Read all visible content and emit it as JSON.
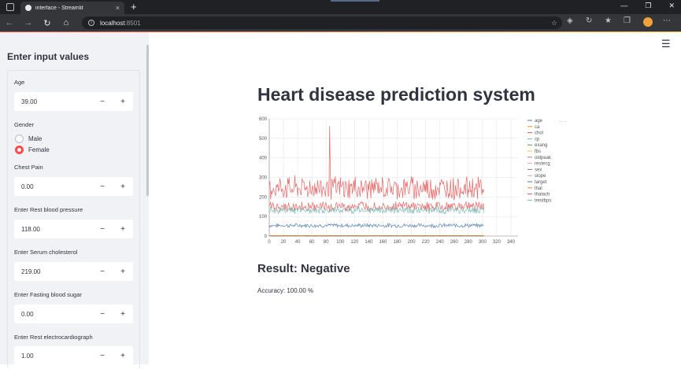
{
  "browser": {
    "tab_title": "interface - Streamlit",
    "tab_close": "×",
    "new_tab": "+",
    "url_host": "localhost",
    "url_port": ":8501",
    "nav_back": "←",
    "nav_forward": "→",
    "nav_reload": "↻",
    "nav_home": "⌂",
    "win_min": "—",
    "win_restore": "❐",
    "win_close": "✕"
  },
  "sidebar": {
    "title": "Enter input values",
    "age": {
      "label": "Age",
      "value": "39.00"
    },
    "gender": {
      "label": "Gender",
      "options": [
        "Male",
        "Female"
      ],
      "selected": "Female"
    },
    "chest_pain": {
      "label": "Chest Pain",
      "value": "0.00"
    },
    "rest_bp": {
      "label": "Enter Rest blood pressure",
      "value": "118.00"
    },
    "cholesterol": {
      "label": "Enter Serum cholesterol",
      "value": "219.00"
    },
    "fbs": {
      "label": "Enter Fasting blood sugar",
      "value": "0.00"
    },
    "restecg": {
      "label": "Enter Rest electrocardiograph",
      "value": "1.00"
    },
    "minus": "−",
    "plus": "+"
  },
  "main": {
    "menu_icon": "☰",
    "title": "Heart disease prediction system",
    "chart_menu": "···",
    "result": "Result: Negative",
    "accuracy": "Accuracy: 100.00 %"
  },
  "chart_data": {
    "type": "line",
    "x_ticks": [
      0,
      20,
      40,
      60,
      80,
      100,
      120,
      140,
      160,
      180,
      200,
      220,
      240,
      260,
      280,
      300,
      320,
      340
    ],
    "y_ticks": [
      0,
      100,
      200,
      300,
      400,
      500,
      600
    ],
    "xlim": [
      0,
      350
    ],
    "ylim": [
      0,
      600
    ],
    "n_points": 303,
    "grid": true,
    "legend_placement": "right",
    "series": [
      {
        "name": "age",
        "color": "#4c78a8",
        "mean": 54,
        "spread": 9
      },
      {
        "name": "ca",
        "color": "#f58518",
        "mean": 0.7,
        "spread": 1
      },
      {
        "name": "chol",
        "color": "#e45756",
        "mean": 246,
        "spread": 52,
        "peak": {
          "x": 85,
          "y": 564
        }
      },
      {
        "name": "cp",
        "color": "#72b7b2",
        "mean": 1,
        "spread": 1
      },
      {
        "name": "exang",
        "color": "#54a24b",
        "mean": 0.3,
        "spread": 0.5
      },
      {
        "name": "fbs",
        "color": "#eeca3b",
        "mean": 0.15,
        "spread": 0.4
      },
      {
        "name": "oldpeak",
        "color": "#b279a2",
        "mean": 1,
        "spread": 1.2
      },
      {
        "name": "restecg",
        "color": "#ff9da6",
        "mean": 0.5,
        "spread": 0.5
      },
      {
        "name": "sex",
        "color": "#9d755d",
        "mean": 0.7,
        "spread": 0.5
      },
      {
        "name": "slope",
        "color": "#bab0ac",
        "mean": 1.4,
        "spread": 0.6
      },
      {
        "name": "target",
        "color": "#4c78a8",
        "mean": 0.5,
        "spread": 0.5
      },
      {
        "name": "thal",
        "color": "#f58518",
        "mean": 2.3,
        "spread": 0.6
      },
      {
        "name": "thalach",
        "color": "#e45756",
        "mean": 150,
        "spread": 22
      },
      {
        "name": "trestbps",
        "color": "#72b7b2",
        "mean": 132,
        "spread": 17
      }
    ]
  }
}
